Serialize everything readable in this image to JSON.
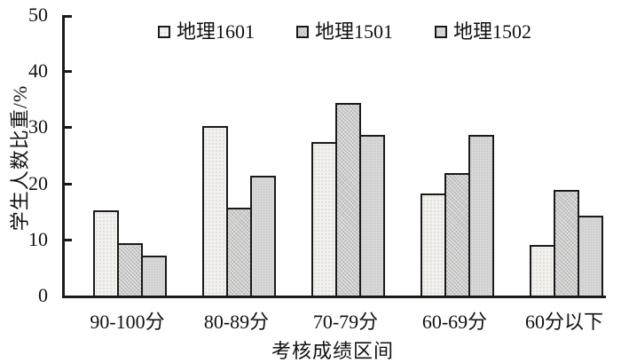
{
  "chart_data": {
    "type": "bar",
    "title": "",
    "xlabel": "考核成绩区间",
    "ylabel": "学生人数比重/%",
    "categories": [
      "90-100分",
      "80-89分",
      "70-79分",
      "60-69分",
      "60分以下"
    ],
    "series": [
      {
        "name": "地理1601",
        "values": [
          15.2,
          30.3,
          27.3,
          18.2,
          9.1
        ],
        "color": "#f2f1ee",
        "pattern": "dots-light"
      },
      {
        "name": "地理1501",
        "values": [
          9.4,
          15.6,
          34.4,
          21.9,
          18.8
        ],
        "color": "#c9c9c9",
        "pattern": "crosshatch"
      },
      {
        "name": "地理1502",
        "values": [
          7.1,
          21.4,
          28.6,
          28.6,
          14.3
        ],
        "color": "#d9d9d9",
        "pattern": "plain"
      }
    ],
    "ylim": [
      0,
      50
    ],
    "yticks": [
      0,
      10,
      20,
      30,
      40,
      50
    ],
    "grid": false,
    "legend_position": "top-inside",
    "axis_color": "#1a1a1a",
    "bar_border_color": "#1a1a1a"
  }
}
